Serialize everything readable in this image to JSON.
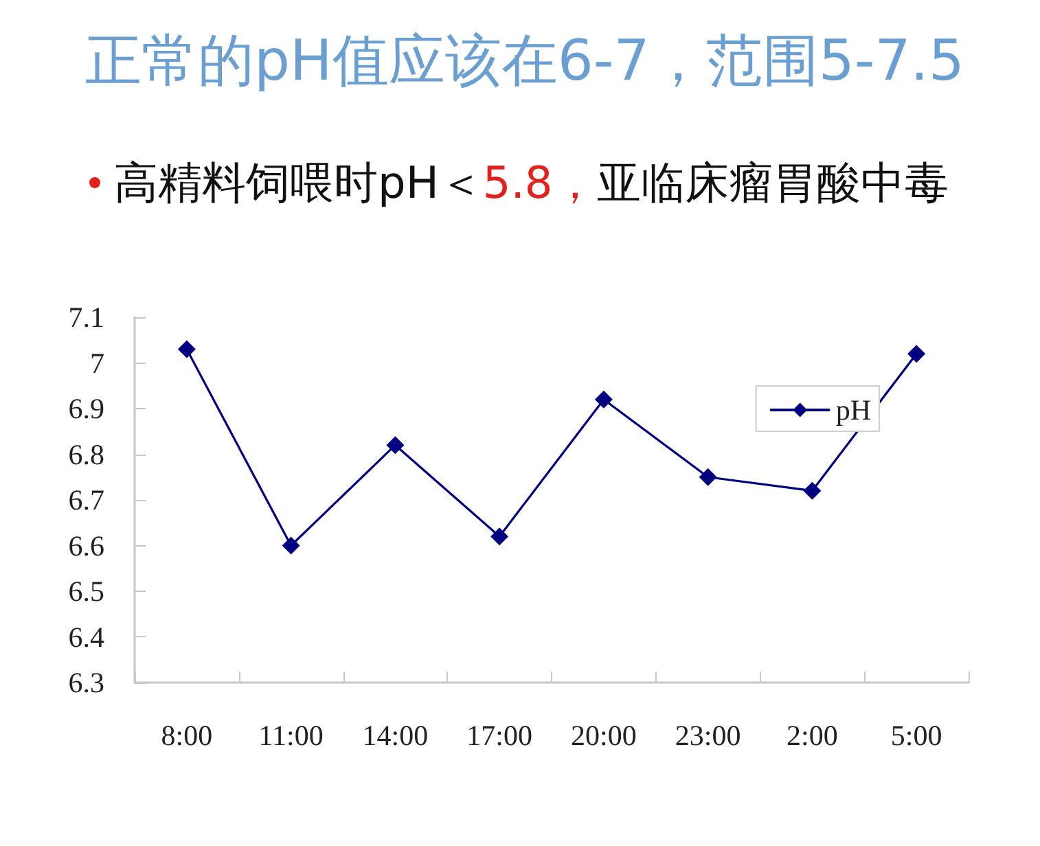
{
  "chart_data": {
    "type": "line",
    "title": "正常的pH值应该在6-7，范围5-7.5",
    "subtitle": "高精料饲喂时pH＜5.8，亚临床瘤胃酸中毒",
    "categories": [
      "8:00",
      "11:00",
      "14:00",
      "17:00",
      "20:00",
      "23:00",
      "2:00",
      "5:00"
    ],
    "series": [
      {
        "name": "pH",
        "color": "#000080",
        "values": [
          7.03,
          6.6,
          6.82,
          6.62,
          6.92,
          6.75,
          6.72,
          7.02
        ]
      }
    ],
    "ylim": [
      6.3,
      7.1
    ],
    "yticks": [
      6.3,
      6.4,
      6.5,
      6.6,
      6.7,
      6.8,
      6.9,
      7,
      7.1
    ],
    "grid": false,
    "legend": "top right",
    "marker": "diamond",
    "line_style": "solid"
  }
}
